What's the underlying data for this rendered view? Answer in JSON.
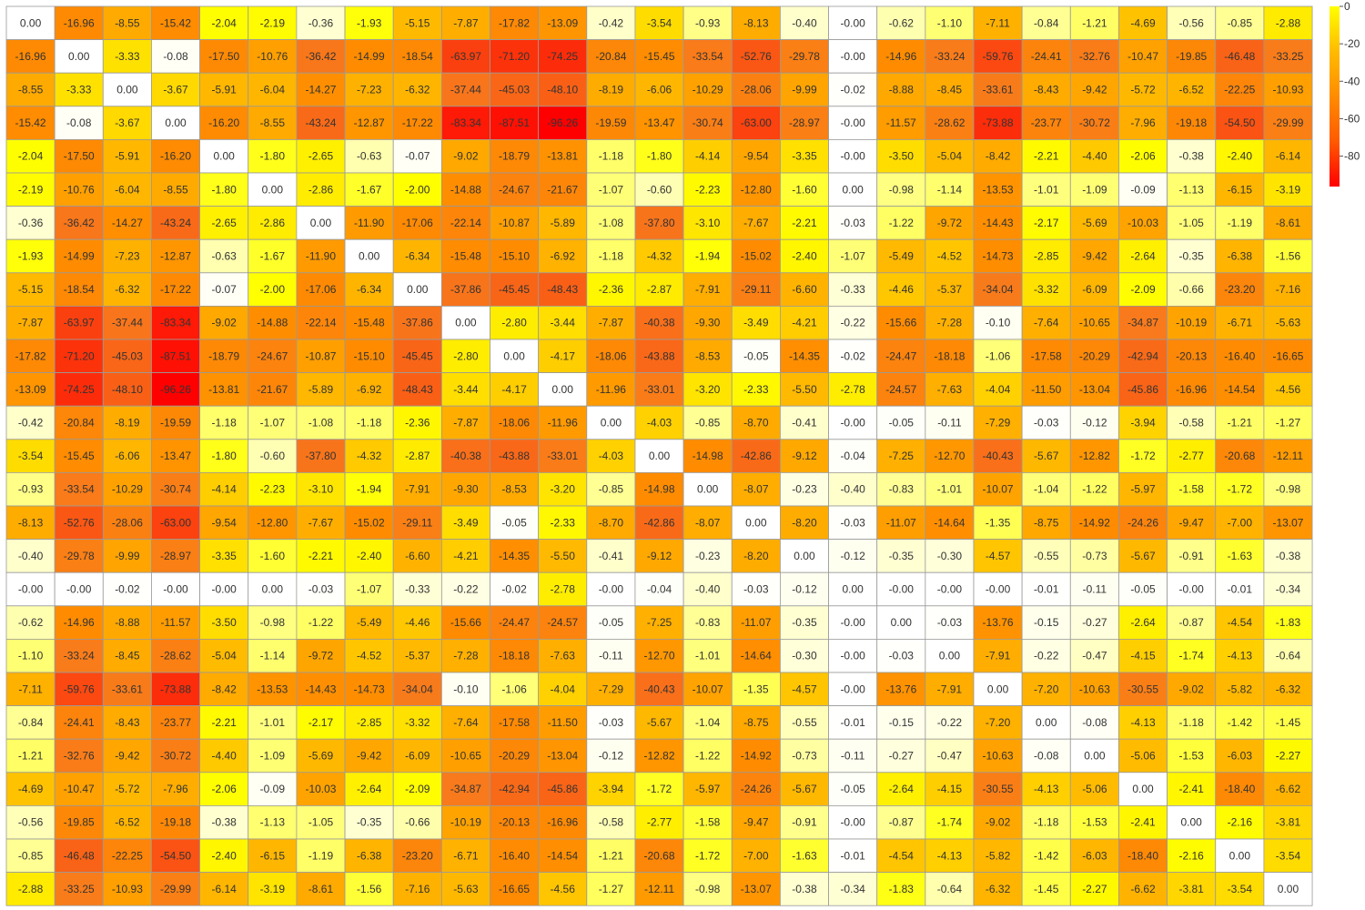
{
  "chart_data": {
    "type": "heatmap",
    "title": "",
    "xlabel": "",
    "ylabel": "",
    "value_format": "fixed-2",
    "color_scale": {
      "min": -96.26,
      "max": 0,
      "stops": [
        {
          "value": 0,
          "color": "#ffffff"
        },
        {
          "value": -2,
          "color": "#ffff00"
        },
        {
          "value": -5,
          "color": "#ffbb00"
        },
        {
          "value": -15,
          "color": "#ff8c00"
        },
        {
          "value": -35,
          "color": "#f87a1c"
        },
        {
          "value": -96.26,
          "color": "#ff0000"
        }
      ]
    },
    "colorbar": {
      "position": "right",
      "ticks": [
        0,
        -20,
        -40,
        -60,
        -80
      ],
      "tick_labels": [
        "0",
        "-20",
        "-40",
        "-60",
        "-80"
      ],
      "gradient_colors": [
        "#ffff00",
        "#ffbb00",
        "#ff8c00",
        "#ff5a00",
        "#ff0000"
      ]
    },
    "rows": [
      [
        0.0,
        -16.96,
        -8.55,
        -15.42,
        -2.04,
        -2.19,
        -0.36,
        -1.93,
        -5.15,
        -7.87,
        -17.82,
        -13.09,
        -0.42,
        -3.54,
        -0.93,
        -8.13,
        -0.4,
        -0.0,
        -0.62,
        -1.1,
        -7.11,
        -0.84,
        -1.21,
        -4.69,
        -0.56,
        -0.85,
        -2.88
      ],
      [
        -16.96,
        0.0,
        -3.33,
        -0.08,
        -17.5,
        -10.76,
        -36.42,
        -14.99,
        -18.54,
        -63.97,
        -71.2,
        -74.25,
        -20.84,
        -15.45,
        -33.54,
        -52.76,
        -29.78,
        -0.0,
        -14.96,
        -33.24,
        -59.76,
        -24.41,
        -32.76,
        -10.47,
        -19.85,
        -46.48,
        -33.25
      ],
      [
        -8.55,
        -3.33,
        0.0,
        -3.67,
        -5.91,
        -6.04,
        -14.27,
        -7.23,
        -6.32,
        -37.44,
        -45.03,
        -48.1,
        -8.19,
        -6.06,
        -10.29,
        -28.06,
        -9.99,
        -0.02,
        -8.88,
        -8.45,
        -33.61,
        -8.43,
        -9.42,
        -5.72,
        -6.52,
        -22.25,
        -10.93
      ],
      [
        -15.42,
        -0.08,
        -3.67,
        0.0,
        -16.2,
        -8.55,
        -43.24,
        -12.87,
        -17.22,
        -83.34,
        -87.51,
        -96.26,
        -19.59,
        -13.47,
        -30.74,
        -63.0,
        -28.97,
        -0.0,
        -11.57,
        -28.62,
        -73.88,
        -23.77,
        -30.72,
        -7.96,
        -19.18,
        -54.5,
        -29.99
      ],
      [
        -2.04,
        -17.5,
        -5.91,
        -16.2,
        0.0,
        -1.8,
        -2.65,
        -0.63,
        -0.07,
        -9.02,
        -18.79,
        -13.81,
        -1.18,
        -1.8,
        -4.14,
        -9.54,
        -3.35,
        -0.0,
        -3.5,
        -5.04,
        -8.42,
        -2.21,
        -4.4,
        -2.06,
        -0.38,
        -2.4,
        -6.14
      ],
      [
        -2.19,
        -10.76,
        -6.04,
        -8.55,
        -1.8,
        0.0,
        -2.86,
        -1.67,
        -2.0,
        -14.88,
        -24.67,
        -21.67,
        -1.07,
        -0.6,
        -2.23,
        -12.8,
        -1.6,
        0.0,
        -0.98,
        -1.14,
        -13.53,
        -1.01,
        -1.09,
        -0.09,
        -1.13,
        -6.15,
        -3.19
      ],
      [
        -0.36,
        -36.42,
        -14.27,
        -43.24,
        -2.65,
        -2.86,
        0.0,
        -11.9,
        -17.06,
        -22.14,
        -10.87,
        -5.89,
        -1.08,
        -37.8,
        -3.1,
        -7.67,
        -2.21,
        -0.03,
        -1.22,
        -9.72,
        -14.43,
        -2.17,
        -5.69,
        -10.03,
        -1.05,
        -1.19,
        -8.61
      ],
      [
        -1.93,
        -14.99,
        -7.23,
        -12.87,
        -0.63,
        -1.67,
        -11.9,
        0.0,
        -6.34,
        -15.48,
        -15.1,
        -6.92,
        -1.18,
        -4.32,
        -1.94,
        -15.02,
        -2.4,
        -1.07,
        -5.49,
        -4.52,
        -14.73,
        -2.85,
        -9.42,
        -2.64,
        -0.35,
        -6.38,
        -1.56
      ],
      [
        -5.15,
        -18.54,
        -6.32,
        -17.22,
        -0.07,
        -2.0,
        -17.06,
        -6.34,
        0.0,
        -37.86,
        -45.45,
        -48.43,
        -2.36,
        -2.87,
        -7.91,
        -29.11,
        -6.6,
        -0.33,
        -4.46,
        -5.37,
        -34.04,
        -3.32,
        -6.09,
        -2.09,
        -0.66,
        -23.2,
        -7.16
      ],
      [
        -7.87,
        -63.97,
        -37.44,
        -83.34,
        -9.02,
        -14.88,
        -22.14,
        -15.48,
        -37.86,
        0.0,
        -2.8,
        -3.44,
        -7.87,
        -40.38,
        -9.3,
        -3.49,
        -4.21,
        -0.22,
        -15.66,
        -7.28,
        -0.1,
        -7.64,
        -10.65,
        -34.87,
        -10.19,
        -6.71,
        -5.63
      ],
      [
        -17.82,
        -71.2,
        -45.03,
        -87.51,
        -18.79,
        -24.67,
        -10.87,
        -15.1,
        -45.45,
        -2.8,
        0.0,
        -4.17,
        -18.06,
        -43.88,
        -8.53,
        -0.05,
        -14.35,
        -0.02,
        -24.47,
        -18.18,
        -1.06,
        -17.58,
        -20.29,
        -42.94,
        -20.13,
        -16.4,
        -16.65
      ],
      [
        -13.09,
        -74.25,
        -48.1,
        -96.26,
        -13.81,
        -21.67,
        -5.89,
        -6.92,
        -48.43,
        -3.44,
        -4.17,
        0.0,
        -11.96,
        -33.01,
        -3.2,
        -2.33,
        -5.5,
        -2.78,
        -24.57,
        -7.63,
        -4.04,
        -11.5,
        -13.04,
        -45.86,
        -16.96,
        -14.54,
        -4.56
      ],
      [
        -0.42,
        -20.84,
        -8.19,
        -19.59,
        -1.18,
        -1.07,
        -1.08,
        -1.18,
        -2.36,
        -7.87,
        -18.06,
        -11.96,
        0.0,
        -4.03,
        -0.85,
        -8.7,
        -0.41,
        -0.0,
        -0.05,
        -0.11,
        -7.29,
        -0.03,
        -0.12,
        -3.94,
        -0.58,
        -1.21,
        -1.27
      ],
      [
        -3.54,
        -15.45,
        -6.06,
        -13.47,
        -1.8,
        -0.6,
        -37.8,
        -4.32,
        -2.87,
        -40.38,
        -43.88,
        -33.01,
        -4.03,
        0.0,
        -14.98,
        -42.86,
        -9.12,
        -0.04,
        -7.25,
        -12.7,
        -40.43,
        -5.67,
        -12.82,
        -1.72,
        -2.77,
        -20.68,
        -12.11
      ],
      [
        -0.93,
        -33.54,
        -10.29,
        -30.74,
        -4.14,
        -2.23,
        -3.1,
        -1.94,
        -7.91,
        -9.3,
        -8.53,
        -3.2,
        -0.85,
        -14.98,
        0.0,
        -8.07,
        -0.23,
        -0.4,
        -0.83,
        -1.01,
        -10.07,
        -1.04,
        -1.22,
        -5.97,
        -1.58,
        -1.72,
        -0.98
      ],
      [
        -8.13,
        -52.76,
        -28.06,
        -63.0,
        -9.54,
        -12.8,
        -7.67,
        -15.02,
        -29.11,
        -3.49,
        -0.05,
        -2.33,
        -8.7,
        -42.86,
        -8.07,
        0.0,
        -8.2,
        -0.03,
        -11.07,
        -14.64,
        -1.35,
        -8.75,
        -14.92,
        -24.26,
        -9.47,
        -7.0,
        -13.07
      ],
      [
        -0.4,
        -29.78,
        -9.99,
        -28.97,
        -3.35,
        -1.6,
        -2.21,
        -2.4,
        -6.6,
        -4.21,
        -14.35,
        -5.5,
        -0.41,
        -9.12,
        -0.23,
        -8.2,
        0.0,
        -0.12,
        -0.35,
        -0.3,
        -4.57,
        -0.55,
        -0.73,
        -5.67,
        -0.91,
        -1.63,
        -0.38
      ],
      [
        -0.0,
        -0.0,
        -0.02,
        -0.0,
        -0.0,
        0.0,
        -0.03,
        -1.07,
        -0.33,
        -0.22,
        -0.02,
        -2.78,
        -0.0,
        -0.04,
        -0.4,
        -0.03,
        -0.12,
        0.0,
        -0.0,
        -0.0,
        -0.0,
        -0.01,
        -0.11,
        -0.05,
        -0.0,
        -0.01,
        -0.34
      ],
      [
        -0.62,
        -14.96,
        -8.88,
        -11.57,
        -3.5,
        -0.98,
        -1.22,
        -5.49,
        -4.46,
        -15.66,
        -24.47,
        -24.57,
        -0.05,
        -7.25,
        -0.83,
        -11.07,
        -0.35,
        -0.0,
        0.0,
        -0.03,
        -13.76,
        -0.15,
        -0.27,
        -2.64,
        -0.87,
        -4.54,
        -1.83
      ],
      [
        -1.1,
        -33.24,
        -8.45,
        -28.62,
        -5.04,
        -1.14,
        -9.72,
        -4.52,
        -5.37,
        -7.28,
        -18.18,
        -7.63,
        -0.11,
        -12.7,
        -1.01,
        -14.64,
        -0.3,
        -0.0,
        -0.03,
        0.0,
        -7.91,
        -0.22,
        -0.47,
        -4.15,
        -1.74,
        -4.13,
        -0.64
      ],
      [
        -7.11,
        -59.76,
        -33.61,
        -73.88,
        -8.42,
        -13.53,
        -14.43,
        -14.73,
        -34.04,
        -0.1,
        -1.06,
        -4.04,
        -7.29,
        -40.43,
        -10.07,
        -1.35,
        -4.57,
        -0.0,
        -13.76,
        -7.91,
        0.0,
        -7.2,
        -10.63,
        -30.55,
        -9.02,
        -5.82,
        -6.32
      ],
      [
        -0.84,
        -24.41,
        -8.43,
        -23.77,
        -2.21,
        -1.01,
        -2.17,
        -2.85,
        -3.32,
        -7.64,
        -17.58,
        -11.5,
        -0.03,
        -5.67,
        -1.04,
        -8.75,
        -0.55,
        -0.01,
        -0.15,
        -0.22,
        -7.2,
        0.0,
        -0.08,
        -4.13,
        -1.18,
        -1.42,
        -1.45
      ],
      [
        -1.21,
        -32.76,
        -9.42,
        -30.72,
        -4.4,
        -1.09,
        -5.69,
        -9.42,
        -6.09,
        -10.65,
        -20.29,
        -13.04,
        -0.12,
        -12.82,
        -1.22,
        -14.92,
        -0.73,
        -0.11,
        -0.27,
        -0.47,
        -10.63,
        -0.08,
        0.0,
        -5.06,
        -1.53,
        -6.03,
        -2.27
      ],
      [
        -4.69,
        -10.47,
        -5.72,
        -7.96,
        -2.06,
        -0.09,
        -10.03,
        -2.64,
        -2.09,
        -34.87,
        -42.94,
        -45.86,
        -3.94,
        -1.72,
        -5.97,
        -24.26,
        -5.67,
        -0.05,
        -2.64,
        -4.15,
        -30.55,
        -4.13,
        -5.06,
        0.0,
        -2.41,
        -18.4,
        -6.62
      ],
      [
        -0.56,
        -19.85,
        -6.52,
        -19.18,
        -0.38,
        -1.13,
        -1.05,
        -0.35,
        -0.66,
        -10.19,
        -20.13,
        -16.96,
        -0.58,
        -2.77,
        -1.58,
        -9.47,
        -0.91,
        -0.0,
        -0.87,
        -1.74,
        -9.02,
        -1.18,
        -1.53,
        -2.41,
        0.0,
        -2.16,
        -3.81
      ],
      [
        -0.85,
        -46.48,
        -22.25,
        -54.5,
        -2.4,
        -6.15,
        -1.19,
        -6.38,
        -23.2,
        -6.71,
        -16.4,
        -14.54,
        -1.21,
        -20.68,
        -1.72,
        -7.0,
        -1.63,
        -0.01,
        -4.54,
        -4.13,
        -5.82,
        -1.42,
        -6.03,
        -18.4,
        -2.16,
        0.0,
        -3.54
      ],
      [
        -2.88,
        -33.25,
        -10.93,
        -29.99,
        -6.14,
        -3.19,
        -8.61,
        -1.56,
        -7.16,
        -5.63,
        -16.65,
        -4.56,
        -1.27,
        -12.11,
        -0.98,
        -13.07,
        -0.38,
        -0.34,
        -1.83,
        -0.64,
        -6.32,
        -1.45,
        -2.27,
        -6.62,
        -3.81,
        -3.54,
        0.0
      ]
    ]
  }
}
